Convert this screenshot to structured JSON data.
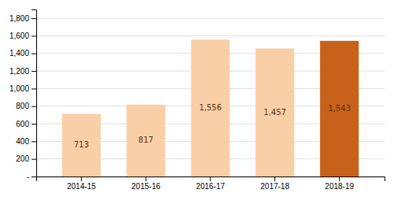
{
  "chart_data": {
    "type": "bar",
    "categories": [
      "2014-15",
      "2015-16",
      "2016-17",
      "2017-18",
      "2018-19"
    ],
    "values": [
      713,
      817,
      1556,
      1457,
      1543
    ],
    "value_labels": [
      "713",
      "817",
      "1,556",
      "1,457",
      "1,543"
    ],
    "data_labels": true,
    "colors": [
      "#f9cfa8",
      "#f9cfa8",
      "#f9cfa8",
      "#f9cfa8",
      "#c8621a"
    ],
    "ylim": [
      0,
      1900
    ],
    "yticks": [
      {
        "value": 0,
        "label": "-"
      },
      200,
      400,
      600,
      800,
      {
        "value": 1000,
        "label": "1,000"
      },
      {
        "value": 1200,
        "label": "1,200"
      },
      {
        "value": 1400,
        "label": "1,400"
      },
      {
        "value": 1600,
        "label": "1,600"
      },
      {
        "value": 1800,
        "label": "1,800"
      }
    ],
    "grid": true
  }
}
